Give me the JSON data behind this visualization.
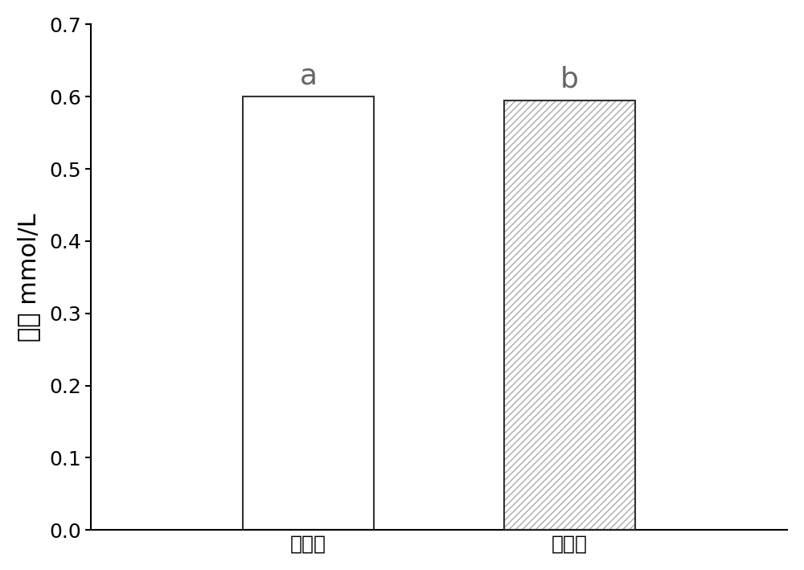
{
  "categories": [
    "理论值",
    "测定值"
  ],
  "values": [
    0.6,
    0.595
  ],
  "bar_labels": [
    "a",
    "b"
  ],
  "bar_colors": [
    "#ffffff",
    "#ffffff"
  ],
  "bar_edgecolor": "#333333",
  "hatch_edgecolor": "#aaaaaa",
  "ylabel": "浓度 mmol/L",
  "ylim": [
    0.0,
    0.7
  ],
  "yticks": [
    0.0,
    0.1,
    0.2,
    0.3,
    0.4,
    0.5,
    0.6,
    0.7
  ],
  "bar_width": 0.15,
  "x_positions": [
    0.35,
    0.65
  ],
  "xlim": [
    0.1,
    0.9
  ],
  "label_fontsize": 22,
  "tick_fontsize": 18,
  "annotation_fontsize": 26,
  "annotation_color": "#666666",
  "hatch_pattern": "////",
  "background_color": "#ffffff",
  "spine_linewidth": 1.5,
  "bar_linewidth": 1.5
}
